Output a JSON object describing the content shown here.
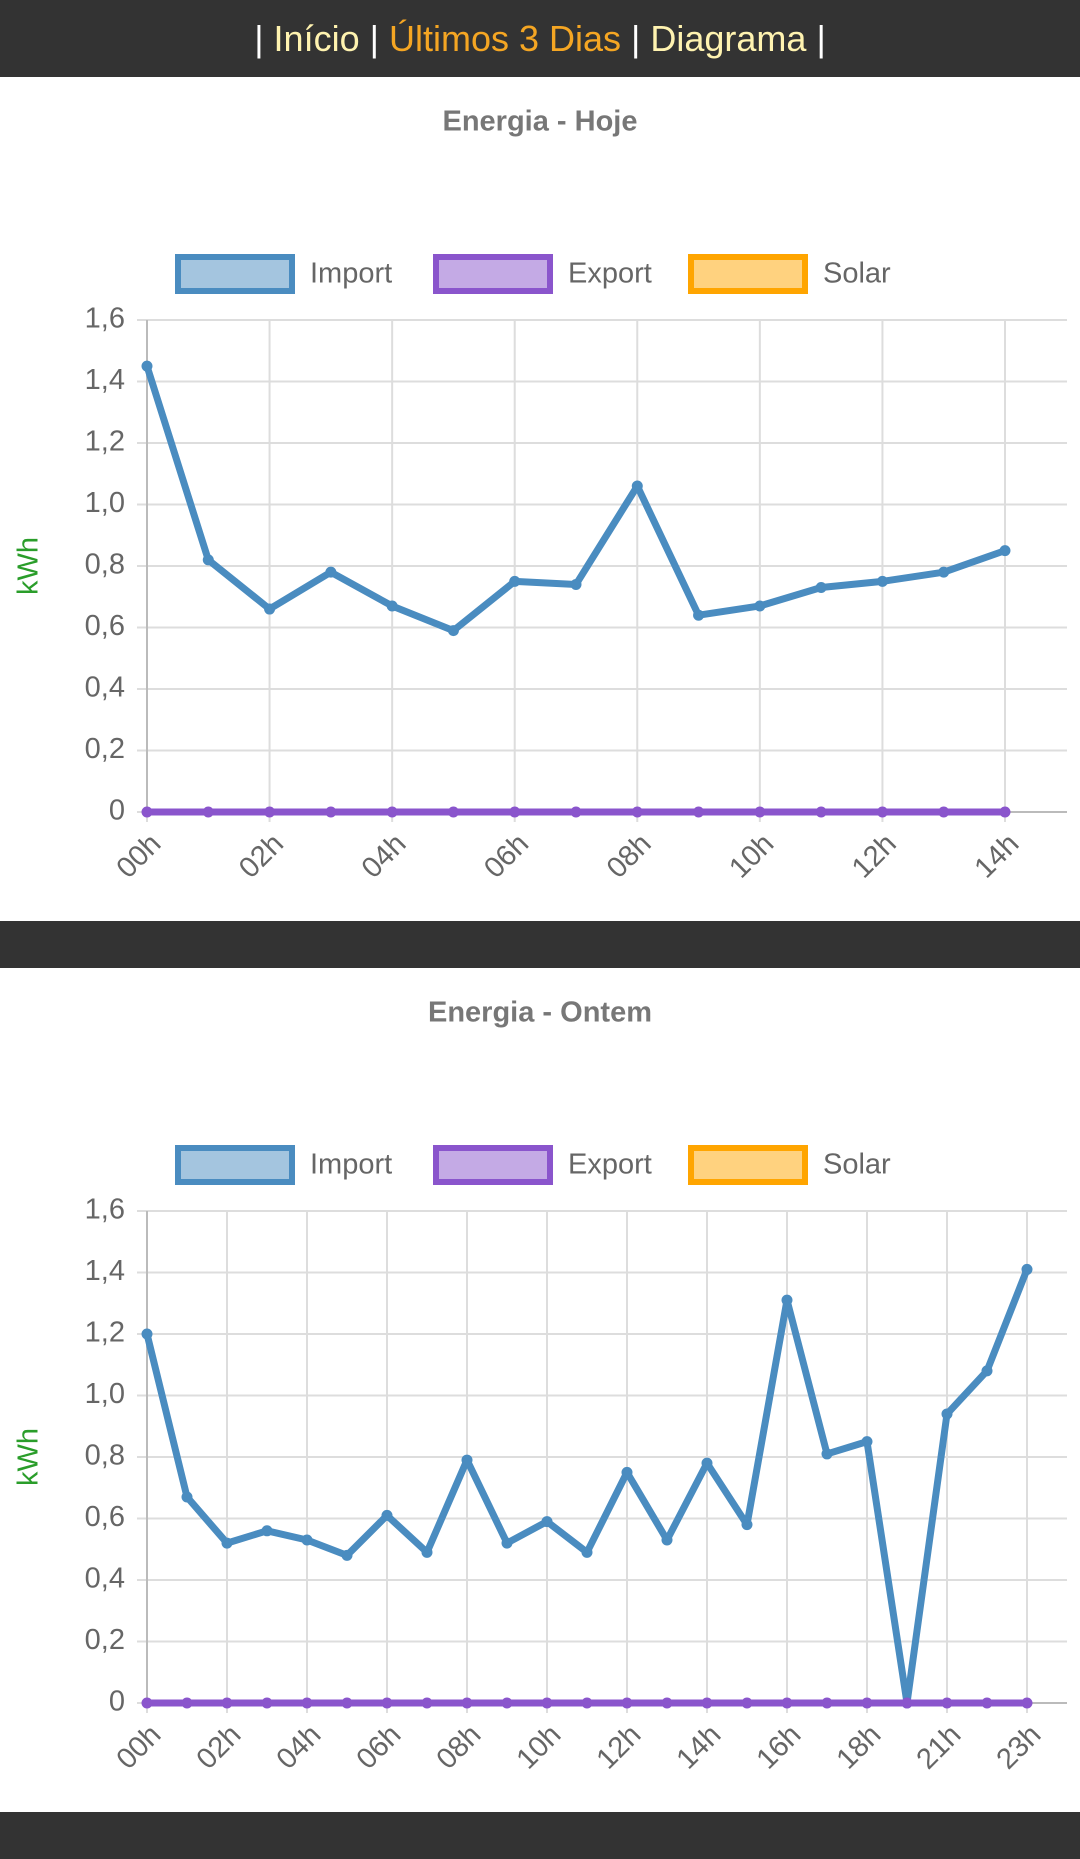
{
  "nav": {
    "separator": "|",
    "items": [
      "Início",
      "Últimos 3 Dias",
      "Diagrama"
    ]
  },
  "chart_data": [
    {
      "type": "line",
      "title": "Energia - Hoje",
      "ylabel": "kWh",
      "categories": [
        "00h",
        null,
        "02h",
        null,
        "04h",
        null,
        "06h",
        null,
        "08h",
        null,
        "10h",
        null,
        "12h",
        null,
        "14h"
      ],
      "series": [
        {
          "name": "Import",
          "color": "#4a8cc0",
          "values": [
            1.45,
            0.82,
            0.66,
            0.78,
            0.67,
            0.59,
            0.75,
            0.74,
            1.06,
            0.64,
            0.67,
            0.73,
            0.75,
            0.78,
            0.85
          ]
        },
        {
          "name": "Export",
          "color": "#8a55cc",
          "values": [
            0,
            0,
            0,
            0,
            0,
            0,
            0,
            0,
            0,
            0,
            0,
            0,
            0,
            0,
            0
          ]
        },
        {
          "name": "Solar",
          "color": "#ffa500",
          "values": [
            null,
            null,
            null,
            null,
            null,
            null,
            null,
            null,
            null,
            null,
            null,
            null,
            null,
            null,
            null
          ]
        }
      ],
      "ylim": [
        0,
        1.6
      ],
      "yticks": [
        0,
        {
          "value": 0.2,
          "label": "0,2"
        },
        {
          "value": 0.4,
          "label": "0,4"
        },
        {
          "value": 0.6,
          "label": "0,6"
        },
        {
          "value": 0.8,
          "label": "0,8"
        },
        {
          "value": 1.0,
          "label": "1,0"
        },
        {
          "value": 1.2,
          "label": "1,2"
        },
        {
          "value": 1.4,
          "label": "1,4"
        },
        {
          "value": 1.6,
          "label": "1,6"
        }
      ],
      "grid": true,
      "legend": "top"
    },
    {
      "type": "line",
      "title": "Energia - Ontem",
      "ylabel": "kWh",
      "categories": [
        "00h",
        null,
        "02h",
        null,
        "04h",
        null,
        "06h",
        null,
        "08h",
        null,
        "10h",
        null,
        "12h",
        null,
        "14h",
        null,
        "16h",
        null,
        "18h",
        null,
        "21h",
        null,
        "23h"
      ],
      "series": [
        {
          "name": "Import",
          "color": "#4a8cc0",
          "values": [
            1.2,
            0.67,
            0.52,
            0.56,
            0.53,
            0.48,
            0.61,
            0.49,
            0.79,
            0.52,
            0.59,
            0.49,
            0.75,
            0.53,
            0.78,
            0.58,
            1.31,
            0.81,
            0.85,
            0,
            0.94,
            1.08,
            1.41
          ]
        },
        {
          "name": "Export",
          "color": "#8a55cc",
          "values": [
            0,
            0,
            0,
            0,
            0,
            0,
            0,
            0,
            0,
            0,
            0,
            0,
            0,
            0,
            0,
            0,
            0,
            0,
            0,
            0,
            0,
            0,
            0
          ]
        },
        {
          "name": "Solar",
          "color": "#ffa500",
          "values": [
            null,
            null,
            null,
            null,
            null,
            null,
            null,
            null,
            null,
            null,
            null,
            null,
            null,
            null,
            null,
            null,
            null,
            null,
            null,
            null,
            null,
            null,
            null
          ]
        }
      ],
      "ylim": [
        0,
        1.6
      ],
      "yticks": [
        0,
        {
          "value": 0.2,
          "label": "0,2"
        },
        {
          "value": 0.4,
          "label": "0,4"
        },
        {
          "value": 0.6,
          "label": "0,6"
        },
        {
          "value": 0.8,
          "label": "0,8"
        },
        {
          "value": 1.0,
          "label": "1,0"
        },
        {
          "value": 1.2,
          "label": "1,2"
        },
        {
          "value": 1.4,
          "label": "1,4"
        },
        {
          "value": 1.6,
          "label": "1,6"
        }
      ],
      "grid": true,
      "legend": "top"
    }
  ]
}
